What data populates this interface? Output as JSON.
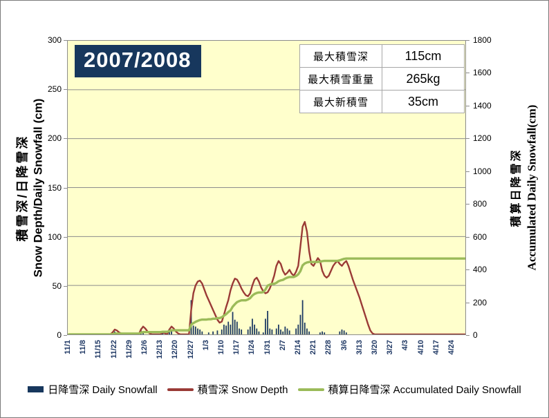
{
  "title": {
    "text": "2007/2008",
    "bg_color": "#17375D",
    "text_color": "#FFFFFF"
  },
  "stats_table": {
    "rows": [
      {
        "label": "最大積雪深",
        "value": "115cm"
      },
      {
        "label": "最大積雪重量",
        "value": "265kg"
      },
      {
        "label": "最大新積雪",
        "value": "35cm"
      }
    ]
  },
  "left_axis": {
    "title_jp": "積雪深/日降雪深",
    "title_en": "Snow Depth/Daily Snowfall  (cm)",
    "ticks": [
      0,
      50,
      100,
      150,
      200,
      250,
      300
    ],
    "max": 300
  },
  "right_axis": {
    "title_jp": "積算日降雪深",
    "title_en": "Accumulated Daily Snowfall(cm)",
    "ticks": [
      0,
      200,
      400,
      600,
      800,
      1000,
      1200,
      1400,
      1600,
      1800
    ],
    "max": 1800
  },
  "legend": [
    {
      "kind": "bar",
      "color": "#17375D",
      "label": "日降雪深 Daily Snowfall"
    },
    {
      "kind": "line",
      "color": "#9A3A36",
      "label": "積雪深 Snow Depth"
    },
    {
      "kind": "line",
      "color": "#9BBB59",
      "label": "積算日降雪深 Accumulated Daily Snowfall"
    }
  ],
  "colors": {
    "plot_background": "#FFFFCC",
    "gridline": "#8C8C8C",
    "bar": "#1E3A64",
    "snow_depth_line": "#9A3A36",
    "accumulated_line": "#9BBB59",
    "x_label": "#1F3864"
  },
  "chart_data": {
    "type": "bar",
    "note": "combo chart: daily snowfall bars + snow depth line on left axis (0-300 cm), accumulated daily snowfall line on right axis (0-1800 cm); accumulated series is the cumulative sum of daily snowfall (total 465 cm)",
    "n_days": 182,
    "x_start": "11/1",
    "x_tick_interval_days": 7,
    "x_tick_labels": [
      "11/1",
      "11/8",
      "11/15",
      "11/22",
      "11/29",
      "12/6",
      "12/13",
      "12/20",
      "12/27",
      "1/3",
      "1/10",
      "1/17",
      "1/24",
      "1/31",
      "2/7",
      "2/14",
      "2/21",
      "2/28",
      "3/6",
      "3/13",
      "3/20",
      "3/27",
      "4/3",
      "4/10",
      "4/17",
      "4/24"
    ],
    "left_ylim": [
      0,
      300
    ],
    "right_ylim": [
      0,
      1800
    ],
    "series": [
      {
        "name": "日降雪深 Daily Snowfall",
        "kind": "bar",
        "axis": "left",
        "values": [
          0,
          0,
          0,
          0,
          0,
          0,
          0,
          0,
          0,
          0,
          0,
          0,
          0,
          0,
          0,
          0,
          0,
          0,
          0,
          0,
          2,
          3,
          0,
          0,
          0,
          0,
          0,
          0,
          0,
          0,
          0,
          0,
          0,
          6,
          3,
          0,
          0,
          0,
          0,
          0,
          0,
          0,
          0,
          2,
          0,
          0,
          4,
          5,
          0,
          0,
          0,
          0,
          0,
          0,
          0,
          0,
          35,
          9,
          8,
          6,
          5,
          3,
          0,
          0,
          2,
          0,
          3,
          0,
          4,
          0,
          5,
          10,
          9,
          13,
          10,
          23,
          15,
          13,
          6,
          5,
          0,
          0,
          5,
          8,
          16,
          10,
          6,
          3,
          0,
          2,
          16,
          24,
          6,
          5,
          0,
          6,
          10,
          5,
          3,
          8,
          6,
          4,
          0,
          0,
          6,
          10,
          20,
          35,
          12,
          6,
          3,
          0,
          0,
          0,
          0,
          2,
          3,
          2,
          0,
          0,
          0,
          0,
          0,
          0,
          3,
          5,
          4,
          2,
          0,
          0,
          0,
          0,
          0,
          0,
          0,
          0,
          0,
          0,
          0,
          0,
          0,
          0,
          0,
          0,
          0,
          0,
          0,
          0,
          0,
          0,
          0,
          0,
          0,
          0,
          0,
          0,
          0,
          0,
          0,
          0,
          0,
          0,
          0,
          0,
          0,
          0,
          0,
          0,
          0,
          0,
          0,
          0,
          0,
          0,
          0,
          0,
          0,
          0,
          0,
          0,
          0,
          0,
          0,
          0,
          0,
          0,
          0,
          0,
          0
        ]
      },
      {
        "name": "積雪深 Snow Depth",
        "kind": "line",
        "axis": "left",
        "values": [
          0,
          0,
          0,
          0,
          0,
          0,
          0,
          0,
          0,
          0,
          0,
          0,
          0,
          0,
          0,
          0,
          0,
          0,
          0,
          0,
          2,
          5,
          4,
          2,
          1,
          0,
          0,
          0,
          0,
          0,
          0,
          0,
          0,
          5,
          8,
          6,
          3,
          1,
          0,
          0,
          0,
          0,
          0,
          2,
          1,
          0,
          5,
          8,
          6,
          3,
          1,
          0,
          0,
          0,
          0,
          0,
          25,
          42,
          50,
          54,
          55,
          52,
          46,
          40,
          35,
          30,
          25,
          20,
          15,
          12,
          13,
          20,
          28,
          35,
          45,
          52,
          57,
          56,
          52,
          47,
          43,
          40,
          39,
          42,
          50,
          56,
          58,
          54,
          48,
          44,
          42,
          43,
          47,
          53,
          60,
          70,
          75,
          72,
          65,
          61,
          63,
          66,
          62,
          60,
          64,
          70,
          90,
          110,
          115,
          105,
          85,
          72,
          70,
          74,
          78,
          75,
          65,
          60,
          58,
          60,
          65,
          70,
          73,
          75,
          72,
          70,
          73,
          75,
          70,
          63,
          56,
          50,
          44,
          38,
          31,
          24,
          17,
          10,
          4,
          1,
          0,
          0,
          0,
          0,
          0,
          0,
          0,
          0,
          0,
          0,
          0,
          0,
          0,
          0,
          0,
          0,
          0,
          0,
          0,
          0,
          0,
          0,
          0,
          0,
          0,
          0,
          0,
          0,
          0,
          0,
          0,
          0,
          0,
          0,
          0,
          0,
          0,
          0,
          0,
          0,
          0,
          0,
          0,
          0,
          0,
          0,
          0,
          0,
          0
        ]
      },
      {
        "name": "積算日降雪深 Accumulated Daily Snowfall",
        "kind": "line",
        "axis": "right",
        "derived": "cumulative_sum_of_daily_snowfall",
        "final_total": 465
      }
    ]
  }
}
